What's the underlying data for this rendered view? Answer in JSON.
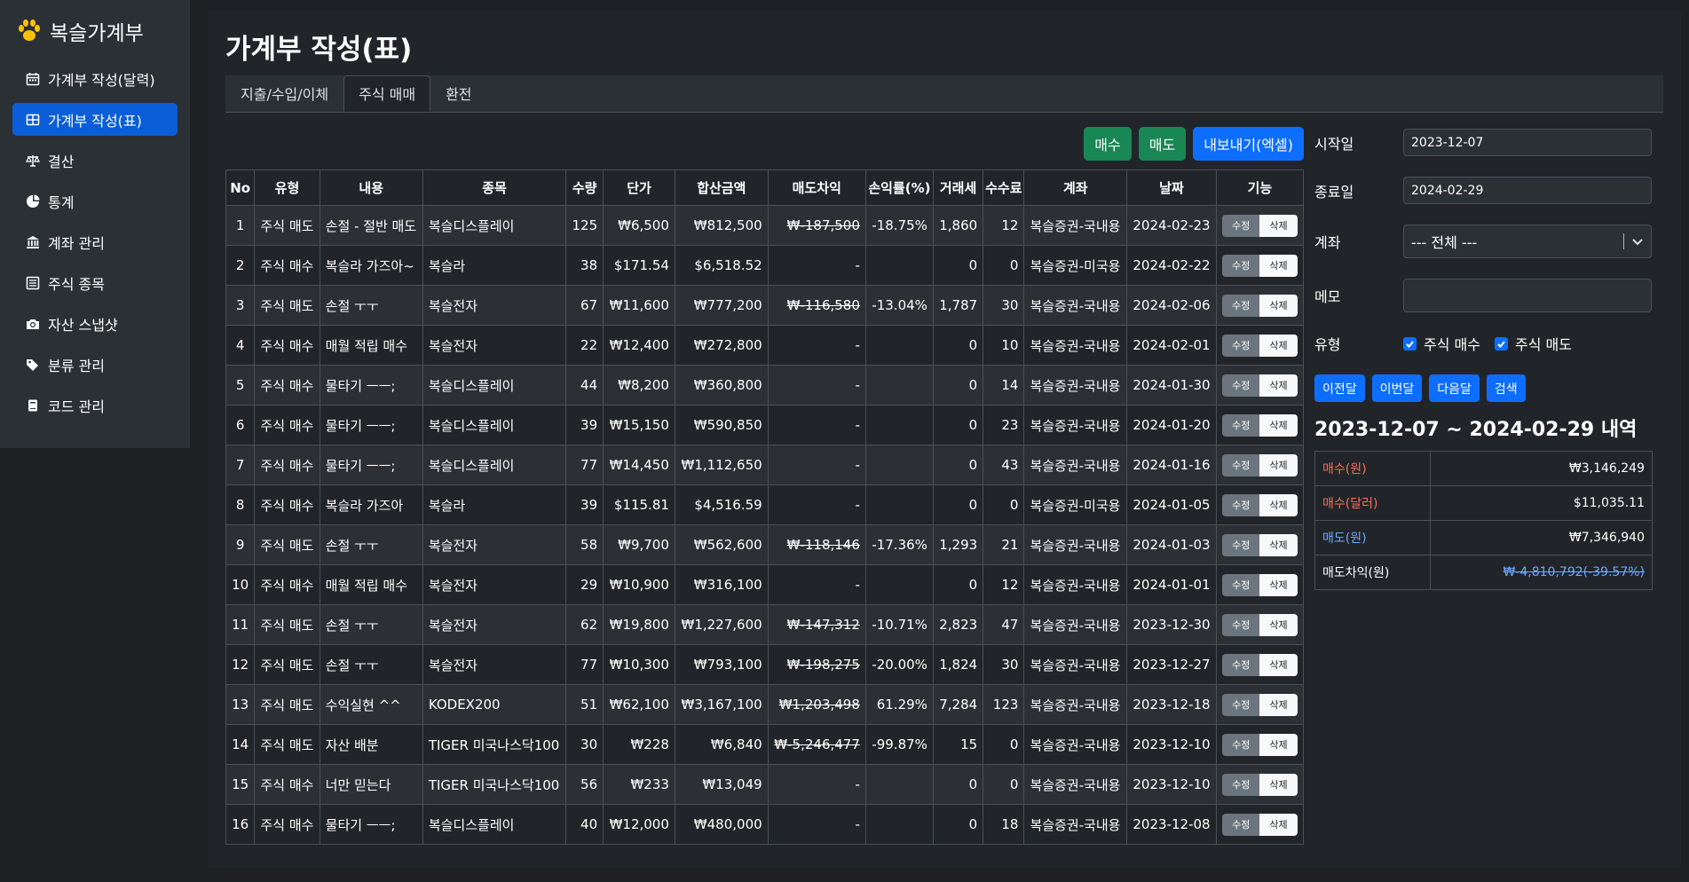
{
  "sidebar": {
    "brand": "복슬가계부",
    "items": [
      {
        "label": "가계부 작성(달력)",
        "icon": "calendar-icon"
      },
      {
        "label": "가계부 작성(표)",
        "icon": "table-icon"
      },
      {
        "label": "결산",
        "icon": "scale-icon"
      },
      {
        "label": "통계",
        "icon": "pie-chart-icon"
      },
      {
        "label": "계좌 관리",
        "icon": "bank-icon"
      },
      {
        "label": "주식 종목",
        "icon": "list-icon"
      },
      {
        "label": "자산 스냅샷",
        "icon": "camera-icon"
      },
      {
        "label": "분류 관리",
        "icon": "tags-icon"
      },
      {
        "label": "코드 관리",
        "icon": "book-icon"
      }
    ]
  },
  "main": {
    "title": "가계부 작성(표)",
    "tabs": [
      "지출/수입/이체",
      "주식 매매",
      "환전"
    ],
    "actions": {
      "buy": "매수",
      "sell": "매도",
      "export": "내보내기(엑셀)"
    }
  },
  "table": {
    "headers": [
      "No",
      "유형",
      "내용",
      "종목",
      "수량",
      "단가",
      "합산금액",
      "매도차익",
      "손익률(%)",
      "거래세",
      "수수료",
      "계좌",
      "날짜",
      "기능"
    ],
    "edit_label": "수정",
    "delete_label": "삭제",
    "rows": [
      {
        "no": "1",
        "type": "주식 매도",
        "kind": "sell",
        "memo": "손절 - 절반 매도",
        "item": "복슬디스플레이",
        "qty": "125",
        "price": "₩6,500",
        "total": "₩812,500",
        "profit": "₩-187,500",
        "rate": "-18.75%",
        "tax": "1,860",
        "fee": "12",
        "account": "복슬증권-국내용",
        "date": "2024-02-23"
      },
      {
        "no": "2",
        "type": "주식 매수",
        "kind": "buy",
        "memo": "복슬라 가즈아~",
        "item": "복슬라",
        "qty": "38",
        "price": "$171.54",
        "total": "$6,518.52",
        "profit": "-",
        "rate": "",
        "tax": "0",
        "fee": "0",
        "account": "복슬증권-미국용",
        "date": "2024-02-22"
      },
      {
        "no": "3",
        "type": "주식 매도",
        "kind": "sell",
        "memo": "손절 ㅜㅜ",
        "item": "복슬전자",
        "qty": "67",
        "price": "₩11,600",
        "total": "₩777,200",
        "profit": "₩-116,580",
        "rate": "-13.04%",
        "tax": "1,787",
        "fee": "30",
        "account": "복슬증권-국내용",
        "date": "2024-02-06"
      },
      {
        "no": "4",
        "type": "주식 매수",
        "kind": "buy",
        "memo": "매월 적립 매수",
        "item": "복슬전자",
        "qty": "22",
        "price": "₩12,400",
        "total": "₩272,800",
        "profit": "-",
        "rate": "",
        "tax": "0",
        "fee": "10",
        "account": "복슬증권-국내용",
        "date": "2024-02-01"
      },
      {
        "no": "5",
        "type": "주식 매수",
        "kind": "buy",
        "memo": "물타기 ㅡㅡ;",
        "item": "복슬디스플레이",
        "qty": "44",
        "price": "₩8,200",
        "total": "₩360,800",
        "profit": "-",
        "rate": "",
        "tax": "0",
        "fee": "14",
        "account": "복슬증권-국내용",
        "date": "2024-01-30"
      },
      {
        "no": "6",
        "type": "주식 매수",
        "kind": "buy",
        "memo": "물타기 ㅡㅡ;",
        "item": "복슬디스플레이",
        "qty": "39",
        "price": "₩15,150",
        "total": "₩590,850",
        "profit": "-",
        "rate": "",
        "tax": "0",
        "fee": "23",
        "account": "복슬증권-국내용",
        "date": "2024-01-20"
      },
      {
        "no": "7",
        "type": "주식 매수",
        "kind": "buy",
        "memo": "물타기 ㅡㅡ;",
        "item": "복슬디스플레이",
        "qty": "77",
        "price": "₩14,450",
        "total": "₩1,112,650",
        "profit": "-",
        "rate": "",
        "tax": "0",
        "fee": "43",
        "account": "복슬증권-국내용",
        "date": "2024-01-16"
      },
      {
        "no": "8",
        "type": "주식 매수",
        "kind": "buy",
        "memo": "복슬라 가즈아",
        "item": "복슬라",
        "qty": "39",
        "price": "$115.81",
        "total": "$4,516.59",
        "profit": "-",
        "rate": "",
        "tax": "0",
        "fee": "0",
        "account": "복슬증권-미국용",
        "date": "2024-01-05"
      },
      {
        "no": "9",
        "type": "주식 매도",
        "kind": "sell",
        "memo": "손절 ㅜㅜ",
        "item": "복슬전자",
        "qty": "58",
        "price": "₩9,700",
        "total": "₩562,600",
        "profit": "₩-118,146",
        "rate": "-17.36%",
        "tax": "1,293",
        "fee": "21",
        "account": "복슬증권-국내용",
        "date": "2024-01-03"
      },
      {
        "no": "10",
        "type": "주식 매수",
        "kind": "buy",
        "memo": "매월 적립 매수",
        "item": "복슬전자",
        "qty": "29",
        "price": "₩10,900",
        "total": "₩316,100",
        "profit": "-",
        "rate": "",
        "tax": "0",
        "fee": "12",
        "account": "복슬증권-국내용",
        "date": "2024-01-01"
      },
      {
        "no": "11",
        "type": "주식 매도",
        "kind": "sell",
        "memo": "손절 ㅜㅜ",
        "item": "복슬전자",
        "qty": "62",
        "price": "₩19,800",
        "total": "₩1,227,600",
        "profit": "₩-147,312",
        "rate": "-10.71%",
        "tax": "2,823",
        "fee": "47",
        "account": "복슬증권-국내용",
        "date": "2023-12-30"
      },
      {
        "no": "12",
        "type": "주식 매도",
        "kind": "sell",
        "memo": "손절 ㅜㅜ",
        "item": "복슬전자",
        "qty": "77",
        "price": "₩10,300",
        "total": "₩793,100",
        "profit": "₩-198,275",
        "rate": "-20.00%",
        "tax": "1,824",
        "fee": "30",
        "account": "복슬증권-국내용",
        "date": "2023-12-27"
      },
      {
        "no": "13",
        "type": "주식 매도",
        "kind": "sell",
        "memo": "수익실현 ^^",
        "item": "KODEX200",
        "qty": "51",
        "price": "₩62,100",
        "total": "₩3,167,100",
        "profit": "₩1,203,498",
        "rate": "61.29%",
        "tax": "7,284",
        "fee": "123",
        "account": "복슬증권-국내용",
        "date": "2023-12-18"
      },
      {
        "no": "14",
        "type": "주식 매도",
        "kind": "sell",
        "memo": "자산 배분",
        "item": "TIGER 미국나스닥100",
        "qty": "30",
        "price": "₩228",
        "total": "₩6,840",
        "profit": "₩-5,246,477",
        "rate": "-99.87%",
        "tax": "15",
        "fee": "0",
        "account": "복슬증권-국내용",
        "date": "2023-12-10"
      },
      {
        "no": "15",
        "type": "주식 매수",
        "kind": "buy",
        "memo": "너만 믿는다",
        "item": "TIGER 미국나스닥100",
        "qty": "56",
        "price": "₩233",
        "total": "₩13,049",
        "profit": "-",
        "rate": "",
        "tax": "0",
        "fee": "0",
        "account": "복슬증권-국내용",
        "date": "2023-12-10"
      },
      {
        "no": "16",
        "type": "주식 매수",
        "kind": "buy",
        "memo": "물타기 ㅡㅡ;",
        "item": "복슬디스플레이",
        "qty": "40",
        "price": "₩12,000",
        "total": "₩480,000",
        "profit": "-",
        "rate": "",
        "tax": "0",
        "fee": "18",
        "account": "복슬증권-국내용",
        "date": "2023-12-08"
      }
    ]
  },
  "filters": {
    "start_label": "시작일",
    "start_value": "2023-12-07",
    "end_label": "종료일",
    "end_value": "2024-02-29",
    "account_label": "계좌",
    "account_value": "--- 전체 ---",
    "memo_label": "메모",
    "memo_value": "",
    "type_label": "유형",
    "type_buy": "주식 매수",
    "type_sell": "주식 매도",
    "btn_prev": "이전달",
    "btn_this": "이번달",
    "btn_next": "다음달",
    "btn_search": "검색"
  },
  "summary": {
    "title": "2023-12-07 ~ 2024-02-29 내역",
    "rows": [
      {
        "label": "매수(원)",
        "value": "₩3,146,249",
        "color": "#ff6b5a"
      },
      {
        "label": "매수(달러)",
        "value": "$11,035.11",
        "color": "#ff6b5a"
      },
      {
        "label": "매도(원)",
        "value": "₩7,346,940",
        "color": "#6ea8fe"
      },
      {
        "label": "매도차익(원)",
        "value": "₩-4,810,792(-39.57%)",
        "color": "#ffffff"
      }
    ]
  },
  "colors": {
    "sell": "#6ea8fe",
    "buy": "#ff6b5a",
    "primary": "#0d6efd",
    "success": "#198754"
  }
}
